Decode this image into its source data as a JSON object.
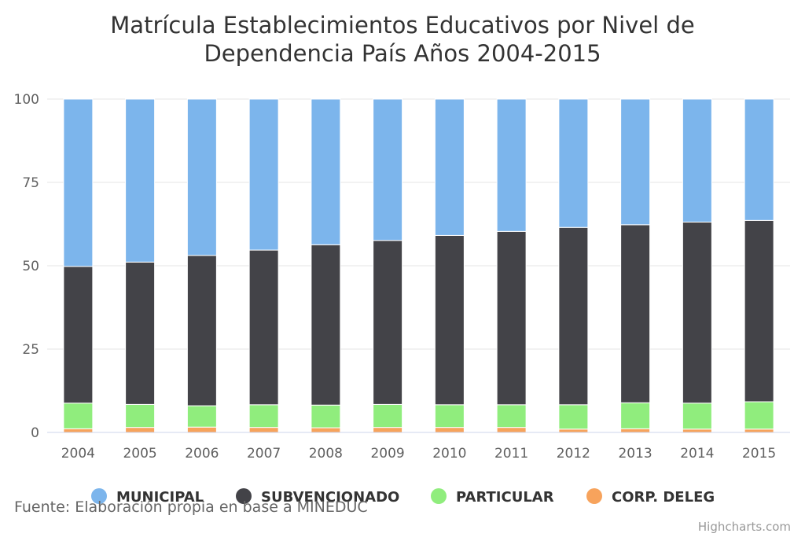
{
  "chart_data": {
    "type": "bar",
    "stacked": true,
    "title": "Matrícula Establecimientos Educativos por Nivel de Dependencia País Años 2004-2015",
    "title_lines": [
      "Matrícula Establecimientos Educativos por Nivel de",
      "Dependencia País Años 2004-2015"
    ],
    "categories": [
      "2004",
      "2005",
      "2006",
      "2007",
      "2008",
      "2009",
      "2010",
      "2011",
      "2012",
      "2013",
      "2014",
      "2015"
    ],
    "ylim": [
      0,
      100
    ],
    "yticks": [
      0,
      25,
      50,
      75,
      100
    ],
    "grid": true,
    "legend_position": "bottom",
    "series": [
      {
        "name": "MUNICIPAL",
        "color": "#7cb5ec",
        "values": [
          50.2,
          48.9,
          46.9,
          45.3,
          43.7,
          42.4,
          40.9,
          39.7,
          38.5,
          37.7,
          36.9,
          36.4
        ]
      },
      {
        "name": "SUBVENCIONADO",
        "color": "#434348",
        "values": [
          41.0,
          42.7,
          45.1,
          46.4,
          48.1,
          49.2,
          50.8,
          52.0,
          53.2,
          53.4,
          54.3,
          54.4
        ]
      },
      {
        "name": "PARTICULAR",
        "color": "#90ed7d",
        "values": [
          7.7,
          6.9,
          6.4,
          6.8,
          6.8,
          6.9,
          6.8,
          6.8,
          7.3,
          7.8,
          7.8,
          8.2
        ]
      },
      {
        "name": "CORP. DELEG",
        "color": "#f7a35c",
        "values": [
          1.1,
          1.5,
          1.6,
          1.5,
          1.4,
          1.5,
          1.5,
          1.5,
          1.0,
          1.1,
          1.0,
          1.0
        ]
      }
    ]
  },
  "caption": "Fuente: Elaboración propia en base a MINEDUC",
  "credit": "Highcharts.com"
}
